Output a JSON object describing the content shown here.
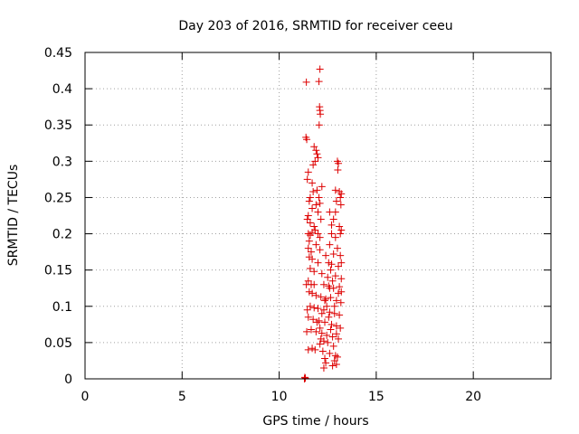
{
  "chart_data": {
    "type": "scatter",
    "title": "Day 203 of 2016, SRMTID for receiver ceeu",
    "xlabel": "GPS time / hours",
    "ylabel": "SRMTID / TECUs",
    "xlim": [
      0,
      24
    ],
    "ylim": [
      0,
      0.45
    ],
    "grid": true,
    "x_ticks": [
      0,
      5,
      10,
      15,
      20
    ],
    "x_tick_labels": [
      "0",
      "5",
      "10",
      "15",
      "20"
    ],
    "y_ticks": [
      0,
      0.05,
      0.1,
      0.15,
      0.2,
      0.25,
      0.3,
      0.35,
      0.4,
      0.45
    ],
    "y_tick_labels": [
      "0",
      "0.05",
      "0.1",
      "0.15",
      "0.2",
      "0.25",
      "0.3",
      "0.35",
      "0.4",
      "0.45"
    ],
    "series": [
      {
        "name": "SRMTID",
        "color": "#dd0000",
        "marker": "plus",
        "points": [
          [
            11.3,
            0.0
          ],
          [
            11.32,
            0.002
          ],
          [
            11.35,
            0.001
          ],
          [
            11.4,
            0.409
          ],
          [
            11.38,
            0.333
          ],
          [
            11.42,
            0.33
          ],
          [
            12.1,
            0.427
          ],
          [
            12.05,
            0.41
          ],
          [
            12.08,
            0.375
          ],
          [
            12.1,
            0.37
          ],
          [
            12.12,
            0.365
          ],
          [
            12.06,
            0.35
          ],
          [
            11.8,
            0.32
          ],
          [
            11.9,
            0.315
          ],
          [
            11.95,
            0.31
          ],
          [
            12.0,
            0.305
          ],
          [
            11.85,
            0.3
          ],
          [
            11.75,
            0.295
          ],
          [
            11.5,
            0.285
          ],
          [
            11.45,
            0.275
          ],
          [
            11.7,
            0.27
          ],
          [
            12.2,
            0.265
          ],
          [
            13.0,
            0.3
          ],
          [
            13.05,
            0.297
          ],
          [
            13.02,
            0.288
          ],
          [
            12.9,
            0.26
          ],
          [
            13.1,
            0.258
          ],
          [
            13.2,
            0.255
          ],
          [
            13.15,
            0.25
          ],
          [
            12.95,
            0.245
          ],
          [
            13.18,
            0.24
          ],
          [
            11.6,
            0.25
          ],
          [
            11.55,
            0.245
          ],
          [
            11.9,
            0.24
          ],
          [
            12.1,
            0.242
          ],
          [
            11.7,
            0.235
          ],
          [
            12.0,
            0.23
          ],
          [
            11.5,
            0.225
          ],
          [
            11.45,
            0.22
          ],
          [
            11.6,
            0.215
          ],
          [
            11.8,
            0.21
          ],
          [
            12.15,
            0.22
          ],
          [
            12.6,
            0.23
          ],
          [
            12.8,
            0.22
          ],
          [
            13.1,
            0.21
          ],
          [
            13.2,
            0.205
          ],
          [
            13.15,
            0.2
          ],
          [
            12.7,
            0.2
          ],
          [
            12.9,
            0.195
          ],
          [
            11.5,
            0.2
          ],
          [
            11.6,
            0.198
          ],
          [
            11.7,
            0.202
          ],
          [
            11.85,
            0.205
          ],
          [
            12.0,
            0.2
          ],
          [
            12.1,
            0.195
          ],
          [
            11.55,
            0.19
          ],
          [
            11.9,
            0.185
          ],
          [
            11.5,
            0.18
          ],
          [
            11.65,
            0.175
          ],
          [
            12.1,
            0.178
          ],
          [
            12.6,
            0.185
          ],
          [
            13.0,
            0.18
          ],
          [
            12.8,
            0.172
          ],
          [
            13.15,
            0.17
          ],
          [
            11.7,
            0.165
          ],
          [
            12.0,
            0.16
          ],
          [
            12.7,
            0.158
          ],
          [
            13.05,
            0.155
          ],
          [
            11.6,
            0.152
          ],
          [
            11.8,
            0.148
          ],
          [
            12.2,
            0.145
          ],
          [
            12.5,
            0.14
          ],
          [
            12.9,
            0.142
          ],
          [
            13.2,
            0.138
          ],
          [
            11.5,
            0.135
          ],
          [
            11.65,
            0.13
          ],
          [
            12.3,
            0.13
          ],
          [
            12.55,
            0.128
          ],
          [
            12.8,
            0.125
          ],
          [
            13.1,
            0.127
          ],
          [
            13.2,
            0.12
          ],
          [
            11.55,
            0.12
          ],
          [
            11.7,
            0.118
          ],
          [
            11.9,
            0.115
          ],
          [
            12.15,
            0.113
          ],
          [
            12.4,
            0.11
          ],
          [
            12.65,
            0.112
          ],
          [
            12.95,
            0.108
          ],
          [
            13.18,
            0.105
          ],
          [
            11.6,
            0.1
          ],
          [
            11.8,
            0.098
          ],
          [
            12.0,
            0.097
          ],
          [
            12.3,
            0.095
          ],
          [
            12.6,
            0.092
          ],
          [
            12.85,
            0.09
          ],
          [
            13.1,
            0.088
          ],
          [
            11.5,
            0.085
          ],
          [
            11.75,
            0.082
          ],
          [
            12.05,
            0.08
          ],
          [
            12.35,
            0.078
          ],
          [
            12.7,
            0.075
          ],
          [
            12.95,
            0.073
          ],
          [
            13.15,
            0.07
          ],
          [
            11.65,
            0.068
          ],
          [
            11.9,
            0.065
          ],
          [
            12.2,
            0.063
          ],
          [
            12.45,
            0.06
          ],
          [
            12.75,
            0.058
          ],
          [
            13.05,
            0.055
          ],
          [
            12.3,
            0.052
          ],
          [
            12.5,
            0.05
          ],
          [
            12.1,
            0.048
          ],
          [
            12.8,
            0.045
          ],
          [
            11.7,
            0.042
          ],
          [
            11.85,
            0.04
          ],
          [
            12.25,
            0.038
          ],
          [
            12.6,
            0.035
          ],
          [
            12.9,
            0.032
          ],
          [
            13.0,
            0.03
          ],
          [
            12.35,
            0.028
          ],
          [
            12.85,
            0.025
          ],
          [
            12.4,
            0.022
          ],
          [
            12.95,
            0.02
          ],
          [
            12.75,
            0.018
          ],
          [
            12.3,
            0.015
          ],
          [
            11.4,
            0.13
          ],
          [
            11.45,
            0.095
          ],
          [
            11.42,
            0.065
          ],
          [
            11.5,
            0.04
          ],
          [
            12.55,
            0.16
          ],
          [
            12.65,
            0.15
          ],
          [
            12.4,
            0.17
          ],
          [
            12.75,
            0.135
          ],
          [
            13.05,
            0.118
          ],
          [
            12.45,
            0.1
          ],
          [
            12.2,
            0.09
          ],
          [
            12.55,
            0.085
          ],
          [
            12.1,
            0.07
          ],
          [
            12.95,
            0.062
          ],
          [
            12.65,
            0.068
          ],
          [
            12.15,
            0.055
          ],
          [
            11.95,
            0.26
          ],
          [
            12.05,
            0.25
          ],
          [
            11.75,
            0.258
          ],
          [
            12.9,
            0.23
          ],
          [
            12.7,
            0.212
          ],
          [
            11.55,
            0.168
          ],
          [
            11.8,
            0.13
          ],
          [
            11.95,
            0.078
          ],
          [
            12.35,
            0.108
          ],
          [
            12.6,
            0.125
          ],
          [
            13.2,
            0.16
          ],
          [
            12.85,
            0.1
          ]
        ]
      }
    ]
  }
}
